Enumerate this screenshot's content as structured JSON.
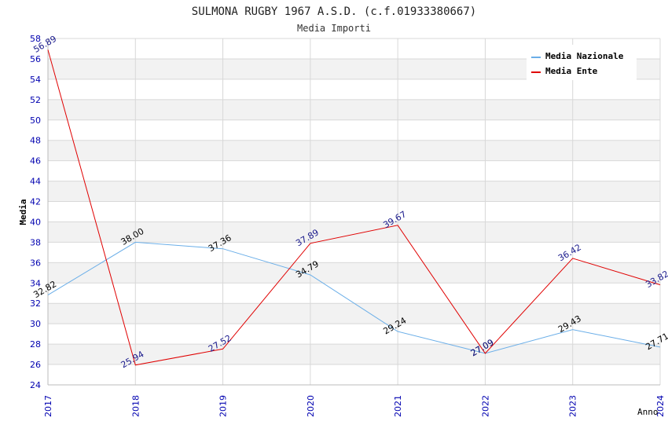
{
  "chart_data": {
    "type": "line",
    "title": "SULMONA RUGBY 1967 A.S.D. (c.f.01933380667)",
    "subtitle": "Media Importi",
    "xlabel": "Anno",
    "ylabel": "Media",
    "categories": [
      "2017",
      "2018",
      "2019",
      "2020",
      "2021",
      "2022",
      "2023",
      "2024"
    ],
    "ylim": [
      24,
      58
    ],
    "yticks": [
      "24",
      "26",
      "28",
      "30",
      "32",
      "34",
      "36",
      "38",
      "40",
      "42",
      "44",
      "46",
      "48",
      "50",
      "52",
      "54",
      "56",
      "58"
    ],
    "legend_position": "top-right",
    "series": [
      {
        "name": "Media Nazionale",
        "color": "#6aaee8",
        "label_color": "#000000",
        "values": [
          32.82,
          38.0,
          37.36,
          34.79,
          29.24,
          27.09,
          29.43,
          27.71
        ],
        "labels": [
          "32.82",
          "38.00",
          "37.36",
          "34.79",
          "29.24",
          "27.09",
          "29.43",
          "27.71"
        ]
      },
      {
        "name": "Media Ente",
        "color": "#e00000",
        "label_color": "#1a1a8c",
        "values": [
          56.89,
          25.94,
          27.52,
          37.89,
          39.67,
          27.09,
          36.42,
          33.82
        ],
        "labels": [
          "56.89",
          "25.94",
          "27.52",
          "37.89",
          "39.67",
          "27.09",
          "36.42",
          "33.82"
        ]
      }
    ],
    "colors": {
      "band": "#f2f2f2",
      "grid": "#d8d8d8",
      "tick_label": "#0000b0",
      "axis": "#000000"
    }
  }
}
